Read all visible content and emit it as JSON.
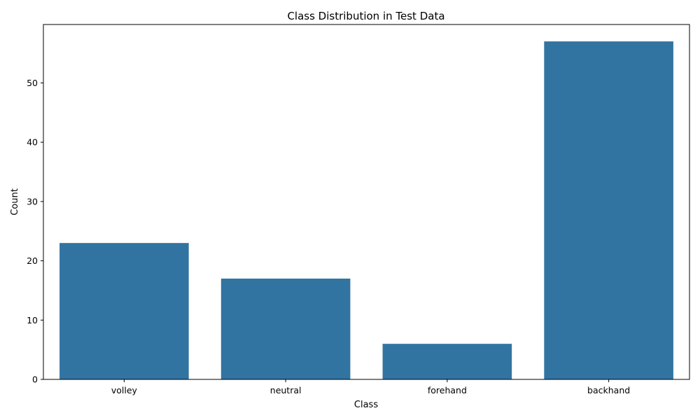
{
  "chart_data": {
    "type": "bar",
    "title": "Class Distribution in Test Data",
    "xlabel": "Class",
    "ylabel": "Count",
    "categories": [
      "volley",
      "neutral",
      "forehand",
      "backhand"
    ],
    "values": [
      23,
      17,
      6,
      57
    ],
    "ylim": [
      0,
      59.85
    ],
    "yticks": [
      0,
      10,
      20,
      30,
      40,
      50
    ],
    "bar_color": "#3274a1",
    "grid": false,
    "legend": "none"
  }
}
